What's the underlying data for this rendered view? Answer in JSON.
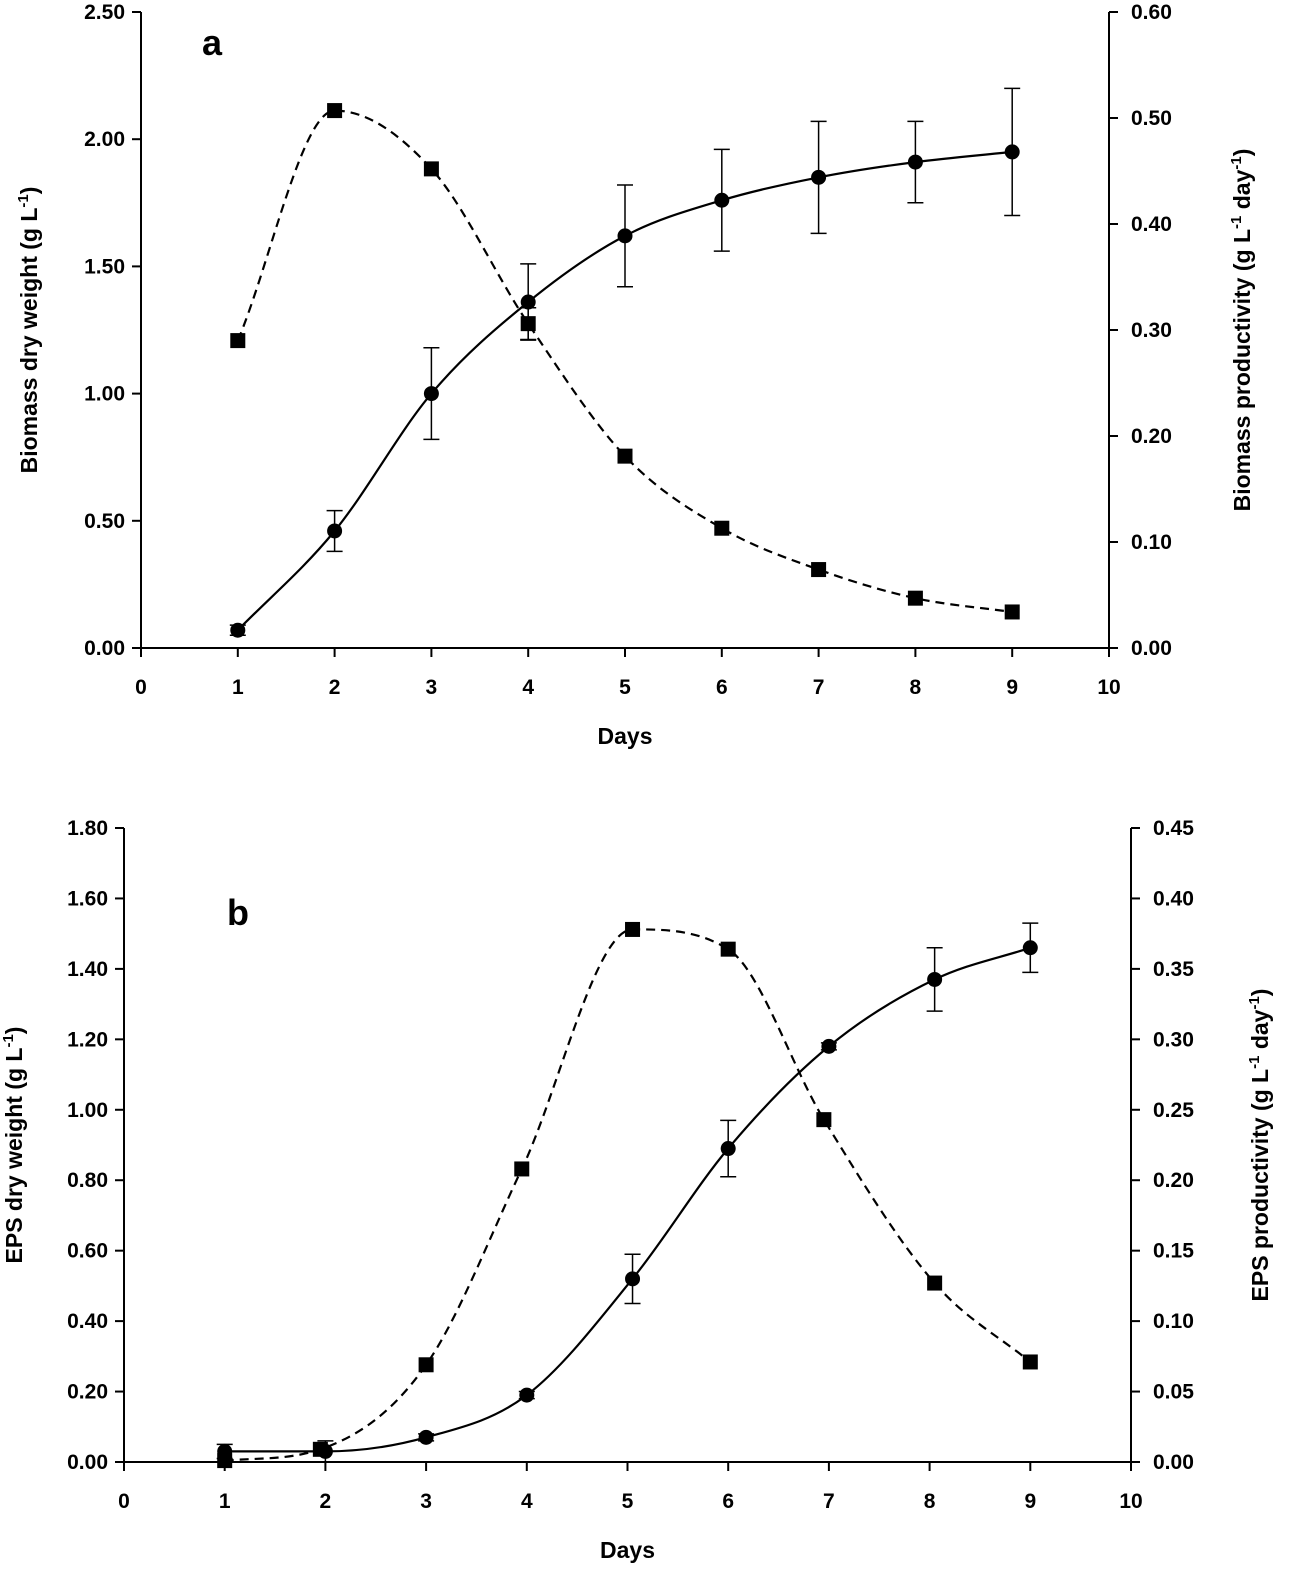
{
  "chart_data": [
    {
      "type": "line",
      "panel_label": "a",
      "xlabel": "Days",
      "xlim": [
        0,
        10
      ],
      "x_ticks": [
        "0",
        "1",
        "2",
        "3",
        "4",
        "5",
        "6",
        "7",
        "8",
        "9",
        "10"
      ],
      "ylabel_left": "Biomass dry weight (g L-1)",
      "ylabel_left_parts": {
        "pre": "Biomass dry weight (g L",
        "sup1": "-1",
        "post": ")"
      },
      "ylim_left": [
        0,
        2.5
      ],
      "y_ticks_left": [
        "0.00",
        "0.50",
        "1.00",
        "1.50",
        "2.00",
        "2.50"
      ],
      "ylabel_right": "Biomass productivity (g L-1 day-1)",
      "ylabel_right_parts": {
        "pre": "Biomass productivity (g L",
        "sup1": "-1",
        "mid": " day",
        "sup2": "-1",
        "post": ")"
      },
      "ylim_right": [
        0,
        0.6
      ],
      "y_ticks_right": [
        "0.00",
        "0.10",
        "0.20",
        "0.30",
        "0.40",
        "0.50",
        "0.60"
      ],
      "series": [
        {
          "axis": "left",
          "marker": "circle",
          "line": "solid",
          "x": [
            1,
            2,
            3,
            4,
            5,
            6,
            7,
            8,
            9
          ],
          "values": [
            0.07,
            0.46,
            1.0,
            1.36,
            1.62,
            1.76,
            1.85,
            1.91,
            1.95
          ],
          "error": [
            0.02,
            0.08,
            0.18,
            0.15,
            0.2,
            0.2,
            0.22,
            0.16,
            0.25
          ]
        },
        {
          "axis": "right",
          "marker": "square",
          "line": "dashed",
          "x": [
            1,
            2,
            3,
            4,
            5,
            6,
            7,
            8,
            9
          ],
          "values": [
            0.29,
            0.507,
            0.452,
            0.306,
            0.181,
            0.113,
            0.074,
            0.047,
            0.034
          ],
          "error": [
            0,
            0,
            0,
            0.015,
            0,
            0,
            0,
            0,
            0
          ]
        }
      ]
    },
    {
      "type": "line",
      "panel_label": "b",
      "xlabel": "Days",
      "xlim": [
        0,
        10
      ],
      "x_ticks": [
        "0",
        "1",
        "2",
        "3",
        "4",
        "5",
        "6",
        "7",
        "8",
        "9",
        "10"
      ],
      "ylabel_left": "EPS dry weight (g L-1)",
      "ylabel_left_parts": {
        "pre": "EPS dry weight (g L",
        "sup1": "-1",
        "post": ")"
      },
      "ylim_left": [
        0,
        1.8
      ],
      "y_ticks_left": [
        "0.00",
        "0.20",
        "0.40",
        "0.60",
        "0.80",
        "1.00",
        "1.20",
        "1.40",
        "1.60",
        "1.80"
      ],
      "ylabel_right": "EPS productivity (g L-1 day-1)",
      "ylabel_right_parts": {
        "pre": "EPS productivity (g L",
        "sup1": "-1",
        "mid": " day",
        "sup2": "-1",
        "post": ")"
      },
      "ylim_right": [
        0,
        0.45
      ],
      "y_ticks_right": [
        "0.00",
        "0.05",
        "0.10",
        "0.15",
        "0.20",
        "0.25",
        "0.30",
        "0.35",
        "0.40",
        "0.45"
      ],
      "series": [
        {
          "axis": "left",
          "marker": "circle",
          "line": "solid",
          "x": [
            1,
            2,
            3,
            4,
            5.05,
            6,
            7,
            8.05,
            9
          ],
          "values": [
            0.03,
            0.03,
            0.07,
            0.19,
            0.52,
            0.89,
            1.18,
            1.37,
            1.46
          ],
          "error": [
            0.02,
            0.03,
            0.01,
            0.01,
            0.07,
            0.08,
            0.01,
            0.09,
            0.07
          ]
        },
        {
          "axis": "right",
          "marker": "square",
          "line": "dashed",
          "x": [
            1,
            1.95,
            3,
            3.95,
            5.05,
            6,
            6.95,
            8.05,
            9
          ],
          "values": [
            0.001,
            0.009,
            0.069,
            0.208,
            0.378,
            0.364,
            0.243,
            0.127,
            0.071
          ],
          "error": [
            0,
            0,
            0,
            0,
            0,
            0,
            0,
            0,
            0
          ]
        }
      ]
    }
  ]
}
